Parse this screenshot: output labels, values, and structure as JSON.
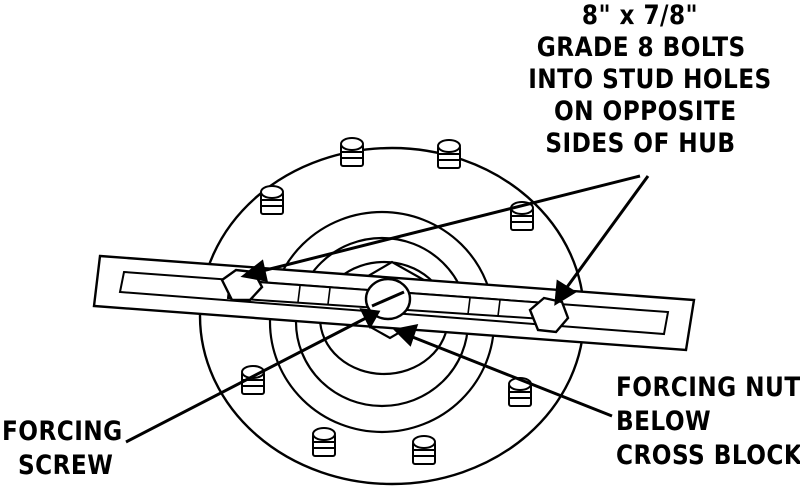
{
  "labels": {
    "bolts": [
      "8\" x 7/8\"",
      "GRADE 8 BOLTS",
      "INTO STUD HOLES",
      "ON OPPOSITE",
      "SIDES OF HUB"
    ],
    "forcing_nut": [
      "FORCING NUT",
      "BELOW",
      "CROSS BLOCK"
    ],
    "forcing_screw": [
      "FORCING",
      "SCREW"
    ]
  },
  "colors": {
    "ink": "#000000",
    "paper": "#ffffff"
  }
}
